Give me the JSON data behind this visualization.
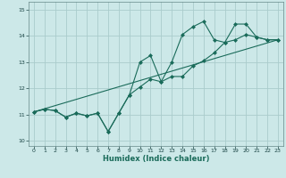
{
  "title": "",
  "xlabel": "Humidex (Indice chaleur)",
  "ylabel": "",
  "bg_color": "#cce8e8",
  "line_color": "#1a6b5a",
  "grid_color": "#aacccc",
  "xlim": [
    -0.5,
    23.5
  ],
  "ylim": [
    9.8,
    15.3
  ],
  "xticks": [
    0,
    1,
    2,
    3,
    4,
    5,
    6,
    7,
    8,
    9,
    10,
    11,
    12,
    13,
    14,
    15,
    16,
    17,
    18,
    19,
    20,
    21,
    22,
    23
  ],
  "yticks": [
    10,
    11,
    12,
    13,
    14,
    15
  ],
  "line1_x": [
    0,
    1,
    2,
    3,
    4,
    5,
    6,
    7,
    8,
    9,
    10,
    11,
    12,
    13,
    14,
    15,
    16,
    17,
    18,
    19,
    20,
    21,
    22,
    23
  ],
  "line1_y": [
    11.1,
    11.2,
    11.15,
    10.9,
    11.05,
    10.95,
    11.05,
    10.35,
    11.05,
    11.75,
    13.0,
    13.25,
    12.25,
    13.0,
    14.05,
    14.35,
    14.55,
    13.85,
    13.75,
    14.45,
    14.45,
    13.95,
    13.85,
    13.85
  ],
  "line2_x": [
    0,
    1,
    2,
    3,
    4,
    5,
    6,
    7,
    8,
    9,
    10,
    11,
    12,
    13,
    14,
    15,
    16,
    17,
    18,
    19,
    20,
    21,
    22,
    23
  ],
  "line2_y": [
    11.1,
    11.2,
    11.15,
    10.9,
    11.05,
    10.95,
    11.05,
    10.35,
    11.05,
    11.75,
    12.05,
    12.35,
    12.25,
    12.45,
    12.45,
    12.85,
    13.05,
    13.35,
    13.75,
    13.85,
    14.05,
    13.95,
    13.85,
    13.85
  ],
  "line3_x": [
    0,
    23
  ],
  "line3_y": [
    11.1,
    13.85
  ]
}
